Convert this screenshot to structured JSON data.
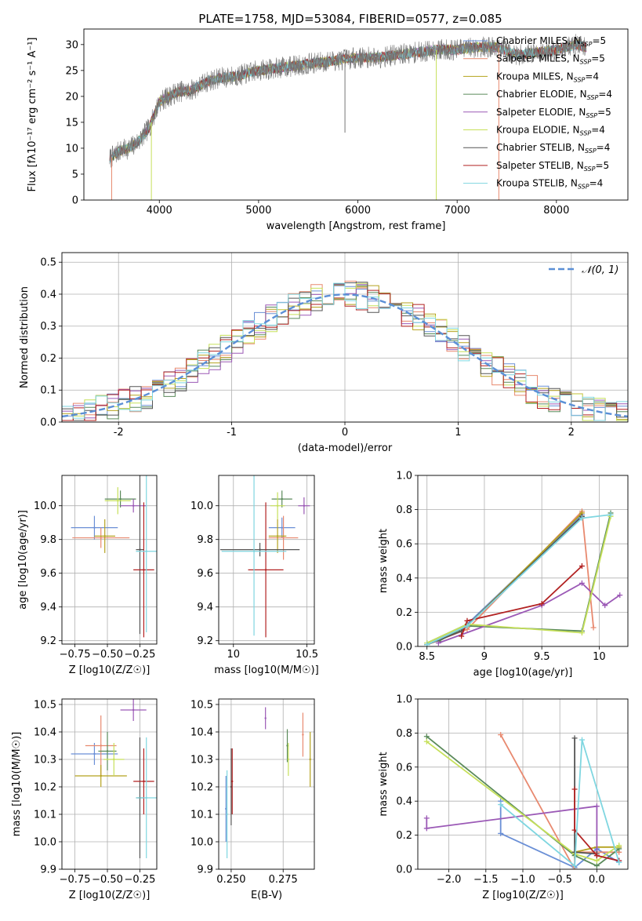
{
  "colors": {
    "axis": "#000000",
    "grid": "#b0b0b0",
    "spectrum": "#777777",
    "gauss": "#5b8fd6",
    "series": [
      "#6a8fd6",
      "#e8896f",
      "#b5a21e",
      "#5a8a5a",
      "#9b59b6",
      "#c6e05a",
      "#555555",
      "#b22222",
      "#7fd6e0"
    ]
  },
  "chart_data": [
    {
      "id": "spectrum",
      "type": "line",
      "title": "PLATE=1758, MJD=53084, FIBERID=0577, z=0.085",
      "xlabel": "wavelength [Angstrom, rest frame]",
      "ylabel": "Flux [fλ10⁻¹⁷ erg cm⁻² s⁻¹ A⁻¹]",
      "xlim": [
        3240,
        8720
      ],
      "ylim": [
        0,
        33
      ],
      "xticks": [
        4000,
        5000,
        6000,
        7000,
        8000
      ],
      "yticks": [
        0,
        5,
        10,
        15,
        20,
        25,
        30
      ],
      "legend_position": "right",
      "legend": [
        {
          "label": "Chabrier MILES, N",
          "sub": "SSP",
          "suffix": "=5"
        },
        {
          "label": "Salpeter MILES, N",
          "sub": "SSP",
          "suffix": "=5"
        },
        {
          "label": "Kroupa MILES, N",
          "sub": "SSP",
          "suffix": "=4"
        },
        {
          "label": "Chabrier ELODIE, N",
          "sub": "SSP",
          "suffix": "=4"
        },
        {
          "label": "Salpeter ELODIE, N",
          "sub": "SSP",
          "suffix": "=5"
        },
        {
          "label": "Kroupa ELODIE, N",
          "sub": "SSP",
          "suffix": "=4"
        },
        {
          "label": "Chabrier STELIB, N",
          "sub": "SSP",
          "suffix": "=4"
        },
        {
          "label": "Salpeter STELIB, N",
          "sub": "SSP",
          "suffix": "=5"
        },
        {
          "label": "Kroupa STELIB, N",
          "sub": "SSP",
          "suffix": "=4"
        }
      ],
      "continuum": {
        "x": [
          3500,
          3600,
          3700,
          3800,
          3900,
          3950,
          4000,
          4100,
          4200,
          4300,
          4400,
          4500,
          4600,
          4800,
          5000,
          5200,
          5400,
          5600,
          5800,
          6000,
          6200,
          6400,
          6600,
          6800,
          7000,
          7200,
          7400,
          7600,
          7800,
          8000,
          8200,
          8300
        ],
        "y": [
          8,
          9.5,
          10,
          11.5,
          14,
          16.5,
          19,
          20,
          21,
          21,
          22,
          23,
          23.5,
          24,
          25,
          25.5,
          26,
          26.5,
          27,
          27.5,
          27.5,
          28,
          28.5,
          29,
          29,
          29.5,
          29.5,
          28,
          28.5,
          29,
          30,
          29.5
        ]
      },
      "spikes": [
        {
          "x": 3520,
          "y": 0
        },
        {
          "x": 3920,
          "y": 0
        },
        {
          "x": 5870,
          "y": 13
        },
        {
          "x": 6790,
          "y": 0
        },
        {
          "x": 7420,
          "y": 0
        }
      ]
    },
    {
      "id": "residuals",
      "type": "line",
      "xlabel": "(data-model)/error",
      "ylabel": "Normed distribution",
      "xlim": [
        -2.5,
        2.5
      ],
      "ylim": [
        0,
        0.53
      ],
      "xticks": [
        -2,
        -1,
        0,
        1,
        2
      ],
      "yticks": [
        0.0,
        0.1,
        0.2,
        0.3,
        0.4,
        0.5
      ],
      "grid": true,
      "legend_position": "top-right",
      "gauss_label": "𝒩(0, 1)"
    },
    {
      "id": "age-vs-Z",
      "type": "scatter",
      "xlabel": "Z [log10(Z/Z☉)]",
      "ylabel": "age  [log10(age/yr)]",
      "xlim": [
        -0.85,
        -0.12
      ],
      "ylim": [
        9.18,
        10.18
      ],
      "xticks": [
        -0.75,
        -0.5,
        -0.25
      ],
      "xticklabels": [
        "−0.75",
        "−0.50",
        "−0.25"
      ],
      "yticks": [
        9.2,
        9.4,
        9.6,
        9.8,
        10.0
      ],
      "grid": true,
      "points": [
        {
          "x": -0.6,
          "y": 9.87,
          "xerr": 0.18,
          "yerr": 0.07
        },
        {
          "x": -0.55,
          "y": 9.81,
          "xerr": 0.22,
          "yerr": 0.06
        },
        {
          "x": -0.52,
          "y": 9.82,
          "xerr": 0.08,
          "yerr": 0.1
        },
        {
          "x": -0.4,
          "y": 10.04,
          "xerr": 0.12,
          "yerr": 0.05
        },
        {
          "x": -0.3,
          "y": 10.0,
          "xerr": 0.1,
          "yerr": 0.04
        },
        {
          "x": -0.42,
          "y": 10.03,
          "xerr": 0.1,
          "yerr": 0.08
        },
        {
          "x": -0.25,
          "y": 9.74,
          "xerr": 0.03,
          "yerr": 0.5
        },
        {
          "x": -0.22,
          "y": 9.62,
          "xerr": 0.08,
          "yerr": 0.4
        },
        {
          "x": -0.2,
          "y": 9.73,
          "xerr": 0.08,
          "yerr": 0.48
        }
      ]
    },
    {
      "id": "age-vs-mass",
      "type": "scatter",
      "xlabel": "mass [log10(M/M☉)]",
      "ylabel": "",
      "xlim": [
        9.9,
        10.55
      ],
      "ylim": [
        9.18,
        10.18
      ],
      "xticks": [
        10.0,
        10.5
      ],
      "yticks": [
        9.2,
        9.4,
        9.6,
        9.8,
        10.0
      ],
      "grid": true,
      "points": [
        {
          "x": 10.33,
          "y": 9.87,
          "xerr": 0.09,
          "yerr": 0.06
        },
        {
          "x": 10.34,
          "y": 9.81,
          "xerr": 0.1,
          "yerr": 0.13
        },
        {
          "x": 10.3,
          "y": 9.82,
          "xerr": 0.06,
          "yerr": 0.1
        },
        {
          "x": 10.33,
          "y": 10.04,
          "xerr": 0.07,
          "yerr": 0.05
        },
        {
          "x": 10.48,
          "y": 10.0,
          "xerr": 0.04,
          "yerr": 0.05
        },
        {
          "x": 10.3,
          "y": 10.0,
          "xerr": 0.05,
          "yerr": 0.08
        },
        {
          "x": 10.18,
          "y": 9.74,
          "xerr": 0.27,
          "yerr": 0.04
        },
        {
          "x": 10.22,
          "y": 9.62,
          "xerr": 0.12,
          "yerr": 0.4
        },
        {
          "x": 10.14,
          "y": 9.73,
          "xerr": 0.22,
          "yerr": 0.5
        }
      ]
    },
    {
      "id": "weight-vs-age",
      "type": "line",
      "xlabel": "age  [log10(age/yr)]",
      "ylabel": "mass weight",
      "xlim": [
        8.42,
        10.25
      ],
      "ylim": [
        0,
        1.0
      ],
      "xticks": [
        8.5,
        9.0,
        9.5,
        10.0
      ],
      "yticks": [
        0.0,
        0.2,
        0.4,
        0.6,
        0.8,
        1.0
      ],
      "grid": true,
      "series": [
        {
          "x": [
            8.5,
            8.85,
            9.85
          ],
          "y": [
            0.02,
            0.13,
            0.77
          ]
        },
        {
          "x": [
            8.5,
            8.85,
            9.85,
            9.95
          ],
          "y": [
            0.01,
            0.1,
            0.79,
            0.11
          ]
        },
        {
          "x": [
            8.5,
            8.85,
            9.85
          ],
          "y": [
            0.01,
            0.12,
            0.78
          ]
        },
        {
          "x": [
            8.6,
            8.85,
            9.85,
            10.1
          ],
          "y": [
            0.03,
            0.12,
            0.09,
            0.78
          ]
        },
        {
          "x": [
            8.6,
            9.5,
            9.85,
            10.05,
            10.18
          ],
          "y": [
            0.02,
            0.24,
            0.37,
            0.24,
            0.3
          ]
        },
        {
          "x": [
            8.5,
            8.85,
            9.85,
            10.1
          ],
          "y": [
            0.02,
            0.13,
            0.08,
            0.76
          ]
        },
        {
          "x": [
            8.5,
            8.8,
            9.85
          ],
          "y": [
            0.01,
            0.09,
            0.76
          ]
        },
        {
          "x": [
            8.8,
            8.85,
            9.5,
            9.85
          ],
          "y": [
            0.06,
            0.15,
            0.25,
            0.47
          ]
        },
        {
          "x": [
            8.5,
            8.85,
            9.85,
            10.1
          ],
          "y": [
            0.01,
            0.12,
            0.75,
            0.77
          ]
        }
      ]
    },
    {
      "id": "mass-vs-Z",
      "type": "scatter",
      "xlabel": "Z [log10(Z/Z☉)]",
      "ylabel": "mass [log10(M/M☉)]",
      "xlim": [
        -0.85,
        -0.12
      ],
      "ylim": [
        9.9,
        10.52
      ],
      "xticks": [
        -0.75,
        -0.5,
        -0.25
      ],
      "xticklabels": [
        "−0.75",
        "−0.50",
        "−0.25"
      ],
      "yticks": [
        9.9,
        10.0,
        10.1,
        10.2,
        10.3,
        10.4,
        10.5
      ],
      "grid": true,
      "points": [
        {
          "x": -0.6,
          "y": 10.32,
          "xerr": 0.18,
          "yerr": 0.04
        },
        {
          "x": -0.55,
          "y": 10.35,
          "xerr": 0.12,
          "yerr": 0.11
        },
        {
          "x": -0.55,
          "y": 10.24,
          "xerr": 0.2,
          "yerr": 0.04
        },
        {
          "x": -0.5,
          "y": 10.33,
          "xerr": 0.07,
          "yerr": 0.07
        },
        {
          "x": -0.3,
          "y": 10.48,
          "xerr": 0.1,
          "yerr": 0.04
        },
        {
          "x": -0.45,
          "y": 10.3,
          "xerr": 0.08,
          "yerr": 0.06
        },
        {
          "x": -0.25,
          "y": 10.16,
          "xerr": 0.03,
          "yerr": 0.22
        },
        {
          "x": -0.22,
          "y": 10.22,
          "xerr": 0.08,
          "yerr": 0.12
        },
        {
          "x": -0.2,
          "y": 10.16,
          "xerr": 0.08,
          "yerr": 0.22
        }
      ]
    },
    {
      "id": "mass-vs-ebv",
      "type": "scatter",
      "xlabel": "E(B-V)",
      "ylabel": "",
      "xlim": [
        0.244,
        0.29
      ],
      "ylim": [
        9.9,
        10.52
      ],
      "xticks": [
        0.25,
        0.275
      ],
      "xticklabels": [
        "0.250",
        "0.275"
      ],
      "yticks": [
        9.9,
        10.0,
        10.1,
        10.2,
        10.3,
        10.4,
        10.5
      ],
      "grid": true,
      "points": [
        {
          "x": 0.2475,
          "y": 10.12,
          "yerr": 0.12
        },
        {
          "x": 0.2845,
          "y": 10.39,
          "yerr": 0.08
        },
        {
          "x": 0.288,
          "y": 10.3,
          "yerr": 0.1
        },
        {
          "x": 0.277,
          "y": 10.35,
          "yerr": 0.06
        },
        {
          "x": 0.2665,
          "y": 10.45,
          "yerr": 0.04
        },
        {
          "x": 0.2775,
          "y": 10.3,
          "yerr": 0.06
        },
        {
          "x": 0.25,
          "y": 10.2,
          "yerr": 0.14
        },
        {
          "x": 0.2505,
          "y": 10.22,
          "yerr": 0.12
        },
        {
          "x": 0.248,
          "y": 10.1,
          "yerr": 0.16
        }
      ]
    },
    {
      "id": "weight-vs-Z",
      "type": "line",
      "xlabel": "Z [log10(Z/Z☉)]",
      "ylabel": "mass weight",
      "xlim": [
        -2.42,
        0.42
      ],
      "ylim": [
        0,
        1.0
      ],
      "xticks": [
        -2.0,
        -1.5,
        -1.0,
        -0.5,
        0.0
      ],
      "xticklabels": [
        "−2.0",
        "−1.5",
        "−1.0",
        "−0.5",
        "0.0"
      ],
      "yticks": [
        0.0,
        0.2,
        0.4,
        0.6,
        0.8,
        1.0
      ],
      "grid": true,
      "series": [
        {
          "x": [
            -1.3,
            -1.3,
            -0.3,
            0.0,
            0.3
          ],
          "y": [
            0.4,
            0.21,
            0.01,
            0.12,
            0.04
          ]
        },
        {
          "x": [
            -1.3,
            -0.3,
            -0.3,
            0.3
          ],
          "y": [
            0.79,
            0.0,
            0.1,
            0.1
          ]
        },
        {
          "x": [
            -0.3,
            0.0,
            0.3
          ],
          "y": [
            0.1,
            0.13,
            0.13
          ]
        },
        {
          "x": [
            -2.3,
            -0.3,
            0.0,
            0.3
          ],
          "y": [
            0.78,
            0.08,
            0.02,
            0.12
          ]
        },
        {
          "x": [
            -2.3,
            -2.3,
            0.0,
            0.0,
            0.3
          ],
          "y": [
            0.3,
            0.24,
            0.37,
            0.08,
            0.05
          ]
        },
        {
          "x": [
            -2.3,
            -0.3,
            0.0,
            0.3
          ],
          "y": [
            0.75,
            0.09,
            0.05,
            0.14
          ]
        },
        {
          "x": [
            -0.3,
            -0.3,
            0.0
          ],
          "y": [
            0.77,
            0.1,
            0.09
          ]
        },
        {
          "x": [
            -0.3,
            -0.3,
            0.0,
            0.3
          ],
          "y": [
            0.47,
            0.23,
            0.08,
            0.05
          ]
        },
        {
          "x": [
            -1.3,
            -0.3,
            -0.2,
            0.3
          ],
          "y": [
            0.38,
            0.02,
            0.76,
            0.04
          ]
        }
      ]
    }
  ]
}
